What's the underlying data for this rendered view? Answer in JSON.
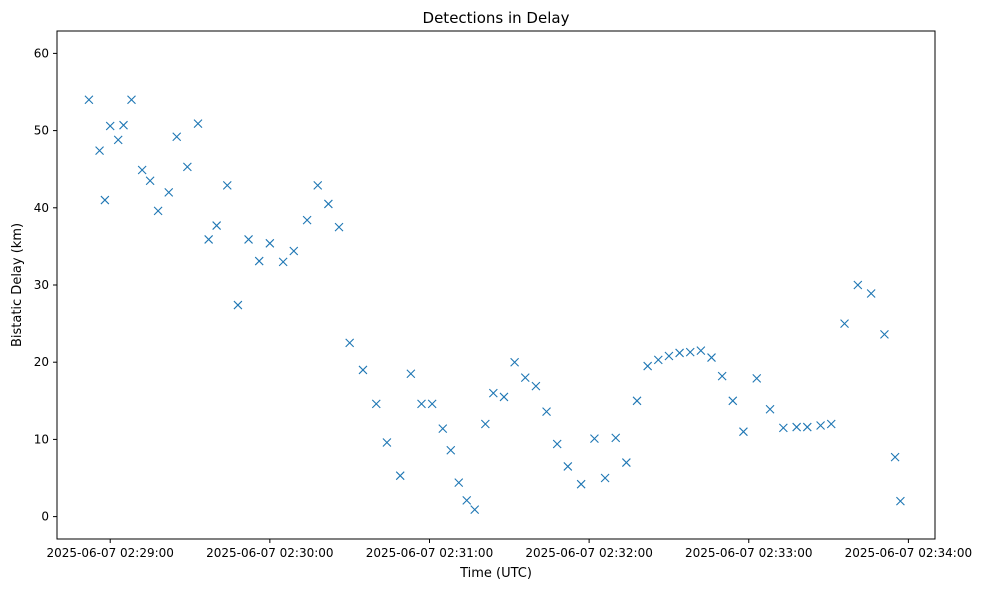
{
  "chart_data": {
    "type": "scatter",
    "title": "Detections in Delay",
    "xlabel": "Time (UTC)",
    "ylabel": "Bistatic Delay (km)",
    "marker": "x",
    "marker_color": "#1f77b4",
    "grid": false,
    "xlim": [
      "2025-06-07 02:28:40",
      "2025-06-07 02:34:10"
    ],
    "ylim": [
      -2.9,
      62.9
    ],
    "x_ticks": [
      "2025-06-07 02:29:00",
      "2025-06-07 02:30:00",
      "2025-06-07 02:31:00",
      "2025-06-07 02:32:00",
      "2025-06-07 02:33:00",
      "2025-06-07 02:34:00"
    ],
    "y_ticks": [
      0,
      10,
      20,
      30,
      40,
      50,
      60
    ],
    "series": [
      {
        "points": [
          [
            "2025-06-07 02:28:52",
            54.0
          ],
          [
            "2025-06-07 02:28:56",
            47.4
          ],
          [
            "2025-06-07 02:28:58",
            41.0
          ],
          [
            "2025-06-07 02:29:00",
            50.6
          ],
          [
            "2025-06-07 02:29:03",
            48.8
          ],
          [
            "2025-06-07 02:29:05",
            50.7
          ],
          [
            "2025-06-07 02:29:08",
            54.0
          ],
          [
            "2025-06-07 02:29:12",
            44.9
          ],
          [
            "2025-06-07 02:29:15",
            43.5
          ],
          [
            "2025-06-07 02:29:18",
            39.6
          ],
          [
            "2025-06-07 02:29:22",
            42.0
          ],
          [
            "2025-06-07 02:29:25",
            49.2
          ],
          [
            "2025-06-07 02:29:29",
            45.3
          ],
          [
            "2025-06-07 02:29:33",
            50.9
          ],
          [
            "2025-06-07 02:29:37",
            35.9
          ],
          [
            "2025-06-07 02:29:40",
            37.7
          ],
          [
            "2025-06-07 02:29:44",
            42.9
          ],
          [
            "2025-06-07 02:29:48",
            27.4
          ],
          [
            "2025-06-07 02:29:52",
            35.9
          ],
          [
            "2025-06-07 02:29:56",
            33.1
          ],
          [
            "2025-06-07 02:30:00",
            35.4
          ],
          [
            "2025-06-07 02:30:05",
            33.0
          ],
          [
            "2025-06-07 02:30:09",
            34.4
          ],
          [
            "2025-06-07 02:30:14",
            38.4
          ],
          [
            "2025-06-07 02:30:18",
            42.9
          ],
          [
            "2025-06-07 02:30:22",
            40.5
          ],
          [
            "2025-06-07 02:30:26",
            37.5
          ],
          [
            "2025-06-07 02:30:30",
            22.5
          ],
          [
            "2025-06-07 02:30:35",
            19.0
          ],
          [
            "2025-06-07 02:30:40",
            14.6
          ],
          [
            "2025-06-07 02:30:44",
            9.6
          ],
          [
            "2025-06-07 02:30:49",
            5.3
          ],
          [
            "2025-06-07 02:30:53",
            18.5
          ],
          [
            "2025-06-07 02:30:57",
            14.6
          ],
          [
            "2025-06-07 02:31:01",
            14.6
          ],
          [
            "2025-06-07 02:31:05",
            11.4
          ],
          [
            "2025-06-07 02:31:08",
            8.6
          ],
          [
            "2025-06-07 02:31:11",
            4.4
          ],
          [
            "2025-06-07 02:31:14",
            2.1
          ],
          [
            "2025-06-07 02:31:17",
            0.9
          ],
          [
            "2025-06-07 02:31:21",
            12.0
          ],
          [
            "2025-06-07 02:31:24",
            16.0
          ],
          [
            "2025-06-07 02:31:28",
            15.5
          ],
          [
            "2025-06-07 02:31:32",
            20.0
          ],
          [
            "2025-06-07 02:31:36",
            18.0
          ],
          [
            "2025-06-07 02:31:40",
            16.9
          ],
          [
            "2025-06-07 02:31:44",
            13.6
          ],
          [
            "2025-06-07 02:31:48",
            9.4
          ],
          [
            "2025-06-07 02:31:52",
            6.5
          ],
          [
            "2025-06-07 02:31:57",
            4.2
          ],
          [
            "2025-06-07 02:32:02",
            10.1
          ],
          [
            "2025-06-07 02:32:06",
            5.0
          ],
          [
            "2025-06-07 02:32:10",
            10.2
          ],
          [
            "2025-06-07 02:32:14",
            7.0
          ],
          [
            "2025-06-07 02:32:18",
            15.0
          ],
          [
            "2025-06-07 02:32:22",
            19.5
          ],
          [
            "2025-06-07 02:32:26",
            20.3
          ],
          [
            "2025-06-07 02:32:30",
            20.8
          ],
          [
            "2025-06-07 02:32:34",
            21.2
          ],
          [
            "2025-06-07 02:32:38",
            21.3
          ],
          [
            "2025-06-07 02:32:42",
            21.5
          ],
          [
            "2025-06-07 02:32:46",
            20.6
          ],
          [
            "2025-06-07 02:32:50",
            18.2
          ],
          [
            "2025-06-07 02:32:54",
            15.0
          ],
          [
            "2025-06-07 02:32:58",
            11.0
          ],
          [
            "2025-06-07 02:33:03",
            17.9
          ],
          [
            "2025-06-07 02:33:08",
            13.9
          ],
          [
            "2025-06-07 02:33:13",
            11.5
          ],
          [
            "2025-06-07 02:33:18",
            11.6
          ],
          [
            "2025-06-07 02:33:22",
            11.6
          ],
          [
            "2025-06-07 02:33:27",
            11.8
          ],
          [
            "2025-06-07 02:33:31",
            12.0
          ],
          [
            "2025-06-07 02:33:36",
            25.0
          ],
          [
            "2025-06-07 02:33:41",
            30.0
          ],
          [
            "2025-06-07 02:33:46",
            28.9
          ],
          [
            "2025-06-07 02:33:51",
            23.6
          ],
          [
            "2025-06-07 02:33:55",
            7.7
          ],
          [
            "2025-06-07 02:33:57",
            2.0
          ]
        ]
      }
    ]
  }
}
